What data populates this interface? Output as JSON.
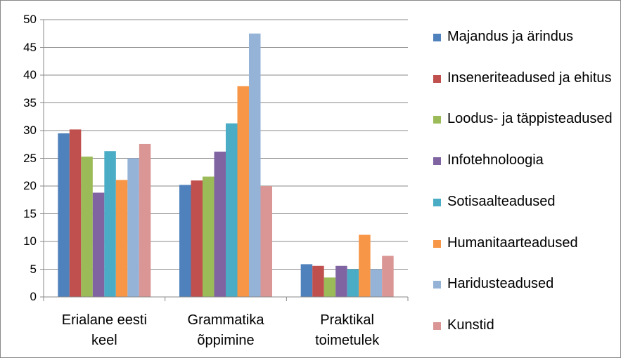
{
  "chart_data": {
    "type": "bar",
    "categories": [
      "Erialane eesti keel",
      "Grammatika õppimine",
      "Praktikal toimetulek"
    ],
    "series": [
      {
        "name": "Majandus ja ärindus",
        "color": "#4F81BD",
        "values": [
          29.5,
          20.2,
          5.9
        ]
      },
      {
        "name": "Inseneriteadused ja ehitus",
        "color": "#C0504D",
        "values": [
          30.2,
          21,
          5.6
        ]
      },
      {
        "name": "Loodus- ja täppisteadused",
        "color": "#9BBB59",
        "values": [
          25.3,
          21.7,
          3.5
        ]
      },
      {
        "name": "Infotehnoloogia",
        "color": "#8064A2",
        "values": [
          18.8,
          26.2,
          5.6
        ]
      },
      {
        "name": "Sotisaalteadused",
        "color": "#4BACC6",
        "values": [
          26.3,
          31.3,
          5
        ]
      },
      {
        "name": "Humanitaarteadused",
        "color": "#F79646",
        "values": [
          21.1,
          38,
          11.2
        ]
      },
      {
        "name": "Haridusteadused",
        "color": "#95B3D7",
        "values": [
          25,
          47.5,
          5
        ]
      },
      {
        "name": "Kunstid",
        "color": "#D99694",
        "values": [
          27.6,
          20,
          7.4
        ]
      }
    ],
    "ylim": [
      0,
      50
    ],
    "yticks": [
      0,
      5,
      10,
      15,
      20,
      25,
      30,
      35,
      40,
      45,
      50
    ],
    "grid": true,
    "legend": "right"
  }
}
